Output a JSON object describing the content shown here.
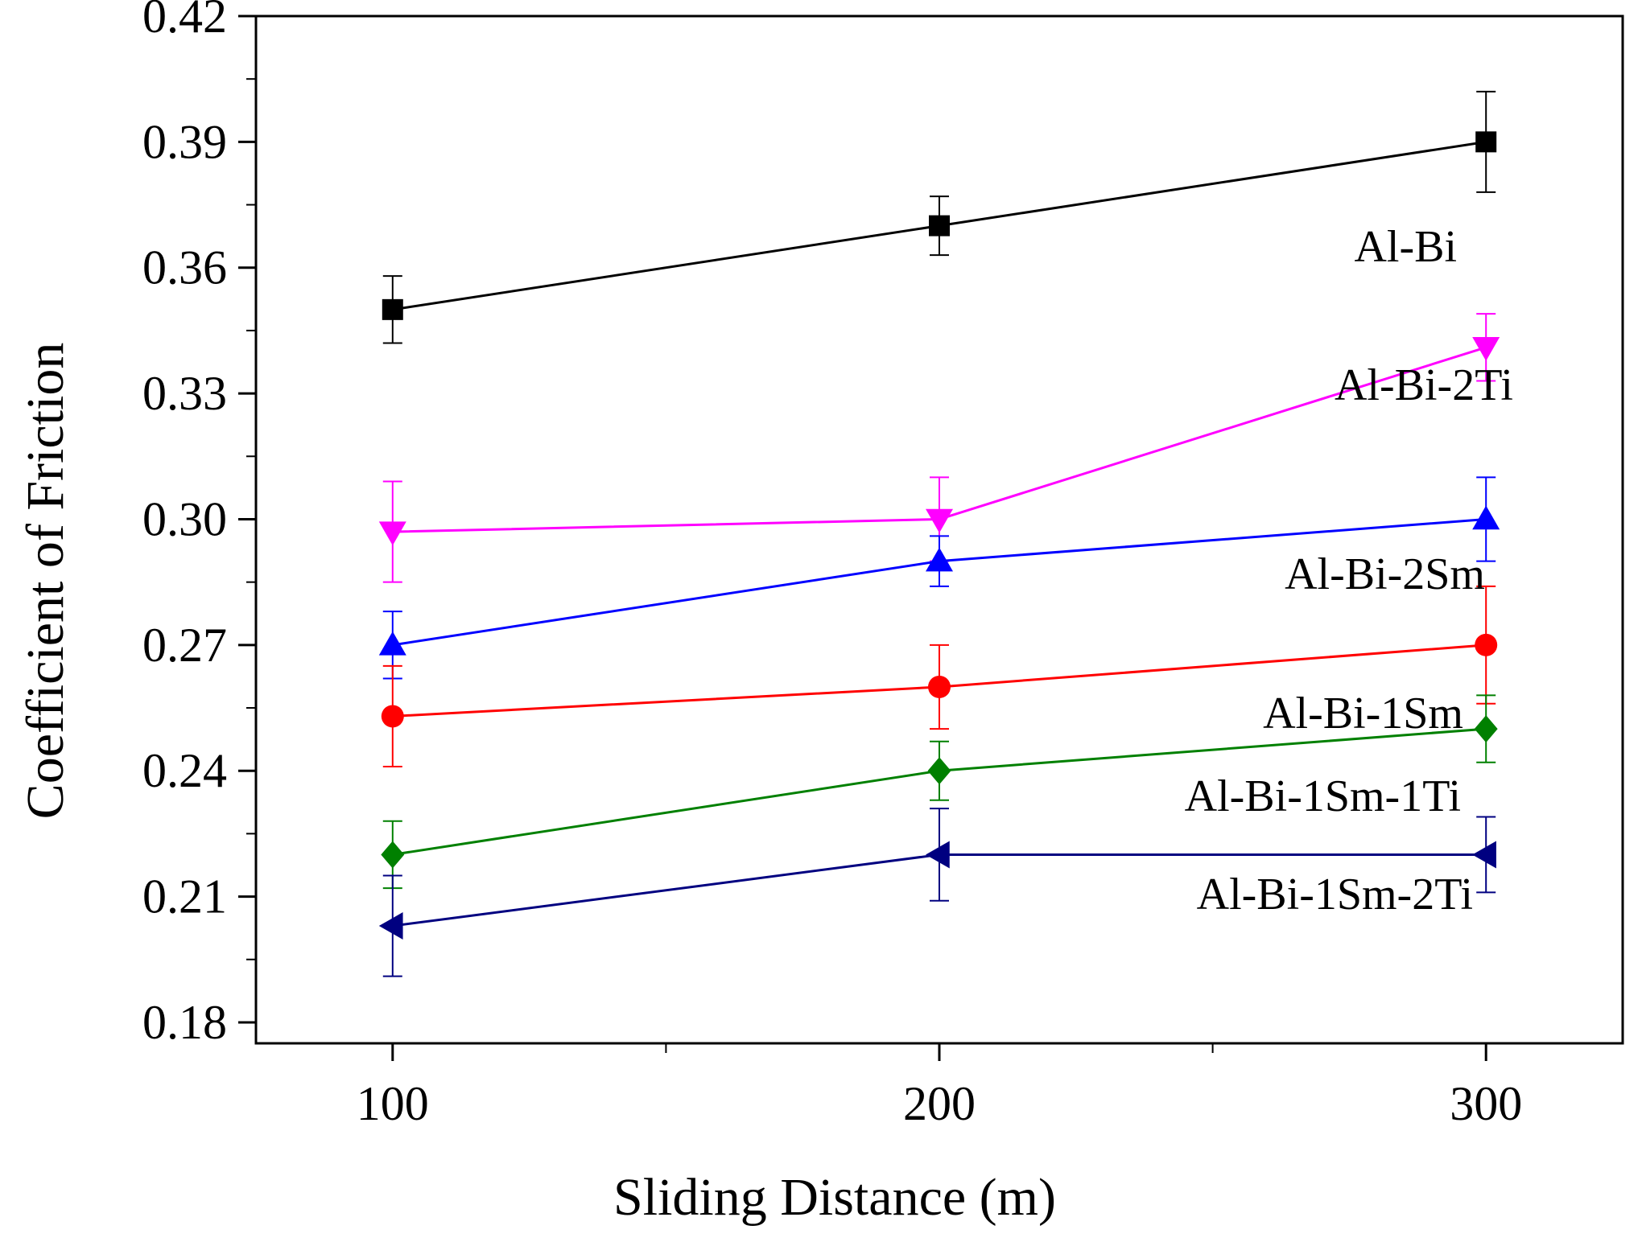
{
  "chart_data": {
    "type": "line",
    "title": "",
    "xlabel": "Sliding Distance (m)",
    "ylabel": "Coefficient of Friction",
    "xlim": [
      75,
      325
    ],
    "ylim": [
      0.175,
      0.42
    ],
    "x": [
      100,
      200,
      300
    ],
    "x_ticks": [
      100,
      200,
      300
    ],
    "x_tick_labels": [
      "100",
      "200",
      "300"
    ],
    "y_ticks": [
      0.18,
      0.21,
      0.24,
      0.27,
      0.3,
      0.33,
      0.36,
      0.39,
      0.42
    ],
    "y_tick_labels": [
      "0.18",
      "0.21",
      "0.24",
      "0.27",
      "0.30",
      "0.33",
      "0.36",
      "0.39",
      "0.42"
    ],
    "grid": false,
    "legend": "inline labels at right",
    "series": [
      {
        "name": "Al-Bi",
        "color": "#000000",
        "marker": "square",
        "values": [
          0.35,
          0.37,
          0.39
        ],
        "errors": [
          0.008,
          0.007,
          0.012
        ]
      },
      {
        "name": "Al-Bi-2Ti",
        "color": "#ff00ff",
        "marker": "triangle-down",
        "values": [
          0.297,
          0.3,
          0.341
        ],
        "errors": [
          0.012,
          0.01,
          0.008
        ]
      },
      {
        "name": "Al-Bi-2Sm",
        "color": "#0000ff",
        "marker": "triangle-up",
        "values": [
          0.27,
          0.29,
          0.3
        ],
        "errors": [
          0.008,
          0.006,
          0.01
        ]
      },
      {
        "name": "Al-Bi-1Sm",
        "color": "#ff0000",
        "marker": "circle",
        "values": [
          0.253,
          0.26,
          0.27
        ],
        "errors": [
          0.012,
          0.01,
          0.014
        ]
      },
      {
        "name": "Al-Bi-1Sm-1Ti",
        "color": "#008000",
        "marker": "diamond",
        "values": [
          0.22,
          0.24,
          0.25
        ],
        "errors": [
          0.008,
          0.007,
          0.008
        ]
      },
      {
        "name": "Al-Bi-1Sm-2Ti",
        "color": "#000080",
        "marker": "triangle-left",
        "values": [
          0.203,
          0.22,
          0.22
        ],
        "errors": [
          0.012,
          0.011,
          0.009
        ]
      }
    ]
  }
}
